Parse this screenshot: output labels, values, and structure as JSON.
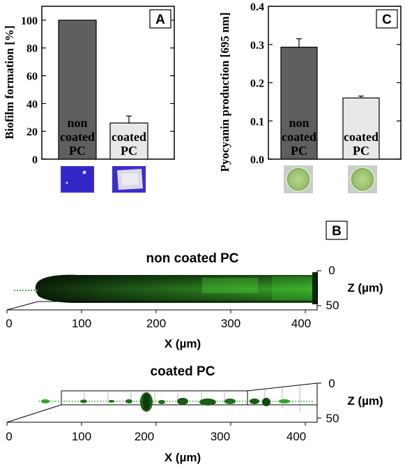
{
  "chart_data": [
    {
      "panel": "A",
      "type": "bar",
      "ylabel": "Biofilm formation [%]",
      "ylim": [
        0,
        110
      ],
      "yticks": [
        "0",
        "20",
        "40",
        "60",
        "80",
        "100"
      ],
      "categories": [
        {
          "label": [
            "non",
            "coated",
            "PC"
          ],
          "value": 100,
          "error": 0,
          "color": "#5f5f5f",
          "text_color": "#000000"
        },
        {
          "label": [
            "coated",
            "PC"
          ],
          "value": 26,
          "error": 5,
          "color": "#e8e8e8",
          "text_color": "#000000"
        }
      ]
    },
    {
      "panel": "C",
      "type": "bar",
      "ylabel": "Pyocyanin production [695 nm]",
      "ylim": [
        0,
        0.4
      ],
      "yticks": [
        "0.0",
        "0.1",
        "0.2",
        "0.3",
        "0.4"
      ],
      "categories": [
        {
          "label": [
            "non",
            "coated",
            "PC"
          ],
          "value": 0.293,
          "error": 0.022,
          "color": "#5f5f5f",
          "text_color": "#000000"
        },
        {
          "label": [
            "coated",
            "PC"
          ],
          "value": 0.16,
          "error": 0.005,
          "color": "#e8e8e8",
          "text_color": "#000000"
        }
      ]
    },
    {
      "panel": "B",
      "type": "other",
      "title": "non coated PC",
      "xlabel": "X (µm)",
      "xticks": [
        "0",
        "100",
        "200",
        "300",
        "400"
      ],
      "zlabel": "Z (µm)",
      "zticks": [
        "0",
        "50"
      ]
    },
    {
      "panel": "B",
      "type": "other",
      "title": "coated PC",
      "xlabel": "X (µm)",
      "xticks": [
        "0",
        "100",
        "200",
        "300",
        "400"
      ],
      "zlabel": "Z (µm)",
      "zticks": [
        "0",
        "50"
      ]
    }
  ],
  "panel_letters": {
    "a": "A",
    "b": "B",
    "c": "C"
  },
  "colors": {
    "crystal_violet": "#3a2ecf",
    "biofilm_green": "#2fa62a"
  }
}
